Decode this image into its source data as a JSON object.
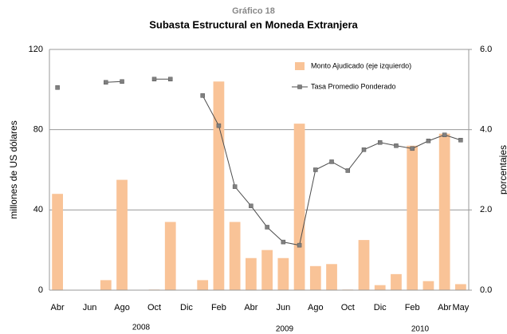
{
  "chart_data": {
    "type": "bar_line",
    "title": "Gráfico 18",
    "subtitle": "Subasta Estructural en Moneda Extranjera",
    "y_label": "millones de US dólares",
    "y2_label": "porcentajes",
    "annotations": [
      "2008",
      "2009",
      "2010"
    ],
    "categories": [
      "Abr",
      null,
      "Jun",
      null,
      "Ago",
      null,
      "Oct",
      null,
      "Dic",
      null,
      "Feb",
      null,
      "Abr",
      null,
      "Jun",
      null,
      "Ago",
      null,
      "Oct",
      null,
      "Dic",
      null,
      "Feb",
      null,
      "Abr",
      "May"
    ],
    "series": [
      {
        "name": "Monto Ajudicado  (eje izquierdo)",
        "color": "#f9c397",
        "type": "bar",
        "values": [
          48,
          0,
          0,
          5,
          55,
          0,
          0.3,
          34,
          0,
          5,
          104,
          34,
          16,
          20,
          16,
          83,
          12,
          13,
          0.3,
          25,
          2.5,
          8,
          72,
          4.5,
          78,
          3
        ]
      },
      {
        "name": "Tasa Promedio Ponderado",
        "color": "#4d4d4d",
        "type": "line",
        "axis": "y2",
        "values": [
          5.05,
          null,
          null,
          5.18,
          5.2,
          null,
          5.26,
          5.26,
          null,
          4.85,
          4.1,
          2.58,
          2.1,
          1.57,
          1.2,
          1.12,
          3.0,
          3.2,
          2.98,
          3.5,
          3.68,
          3.6,
          3.53,
          3.72,
          3.87,
          3.74
        ]
      }
    ],
    "ylim": [
      0,
      120
    ],
    "yticks": [
      0,
      40,
      80,
      120
    ],
    "y2lim": [
      0,
      6
    ],
    "y2ticks": [
      {
        "value": 0,
        "label": "0.0"
      },
      {
        "value": 2,
        "label": "2.0"
      },
      {
        "value": 4,
        "label": "4.0"
      },
      {
        "value": 6,
        "label": "6.0"
      }
    ],
    "grid": true
  }
}
